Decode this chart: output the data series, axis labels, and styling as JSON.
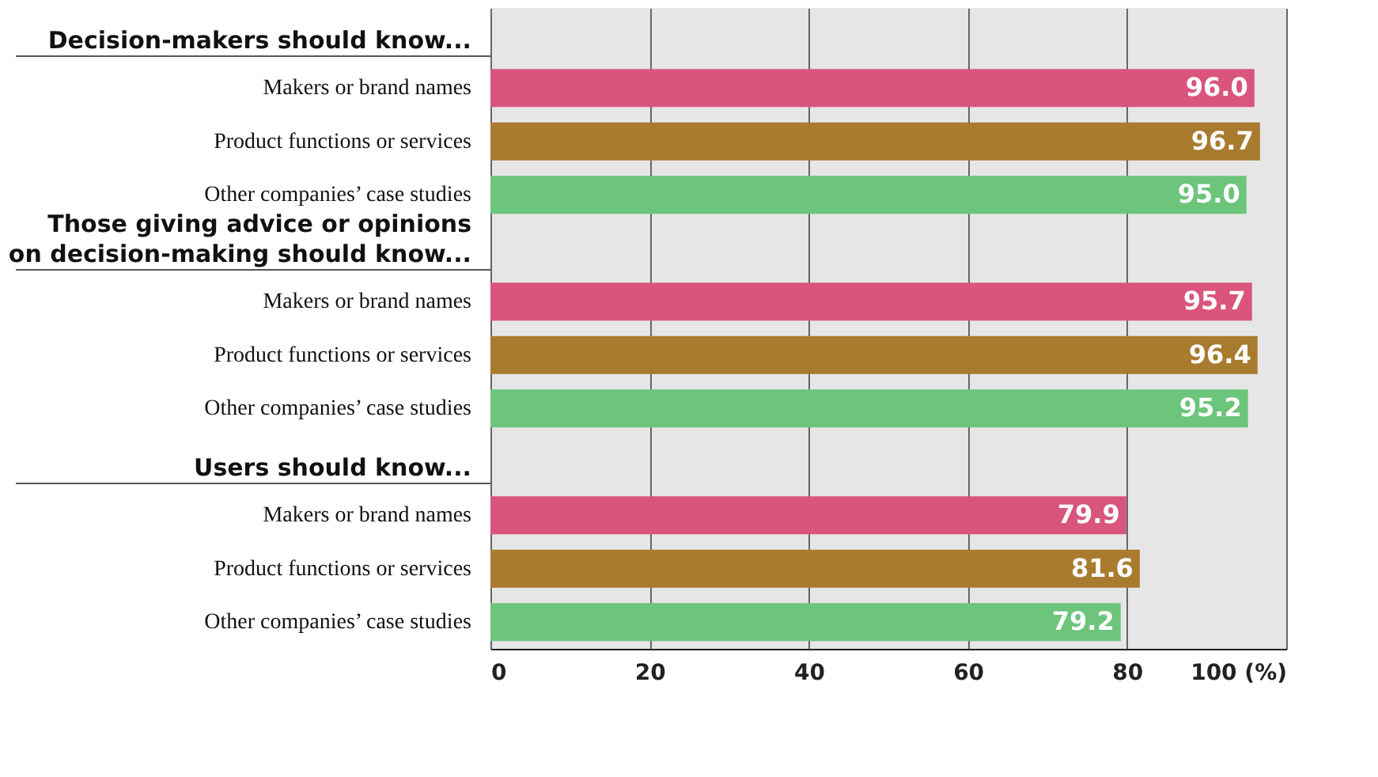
{
  "chart_data": {
    "type": "bar",
    "orientation": "horizontal",
    "grid": "x",
    "categories": [
      "Decision-makers should know...",
      "Makers or brand names",
      "Product functions or services",
      "Other companies’ case studies",
      "Those giving advice or opinions\non decision-making should know...",
      "Makers or brand names",
      "Product functions or services",
      "Other companies’ case studies",
      "Users should know...",
      "Makers or brand names",
      "Product functions or services",
      "Other companies’ case studies"
    ],
    "values": [
      null,
      96.0,
      96.7,
      95.0,
      null,
      95.7,
      96.4,
      95.2,
      null,
      79.9,
      81.6,
      79.2
    ],
    "value_labels": [
      null,
      "96.0",
      "96.7",
      "95.0",
      null,
      "95.7",
      "96.4",
      "95.2",
      null,
      "79.9",
      "81.6",
      "79.2"
    ],
    "colors": [
      null,
      "#d9557c",
      "#a87b2e",
      "#6cc57a",
      null,
      "#d9557c",
      "#a87b2e",
      "#6cc57a",
      null,
      "#d9557c",
      "#a87b2e",
      "#6cc57a"
    ],
    "xlim": [
      0,
      100
    ],
    "xticks": [
      0,
      20,
      40,
      60,
      80,
      {
        "value": 100,
        "label": "100 (%)"
      }
    ]
  }
}
